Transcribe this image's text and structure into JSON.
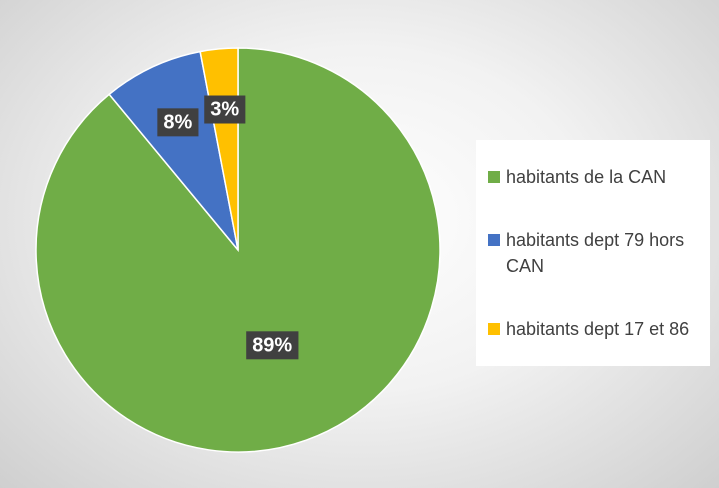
{
  "chart_data": {
    "type": "pie",
    "categories": [
      "habitants de la CAN",
      "habitants dept 79 hors CAN",
      "habitants dept 17 et 86"
    ],
    "values": [
      89,
      8,
      3
    ],
    "value_labels": [
      "89%",
      "8%",
      "3%"
    ],
    "colors": [
      "#70ad47",
      "#4472c4",
      "#ffc000"
    ],
    "legend": "right"
  }
}
